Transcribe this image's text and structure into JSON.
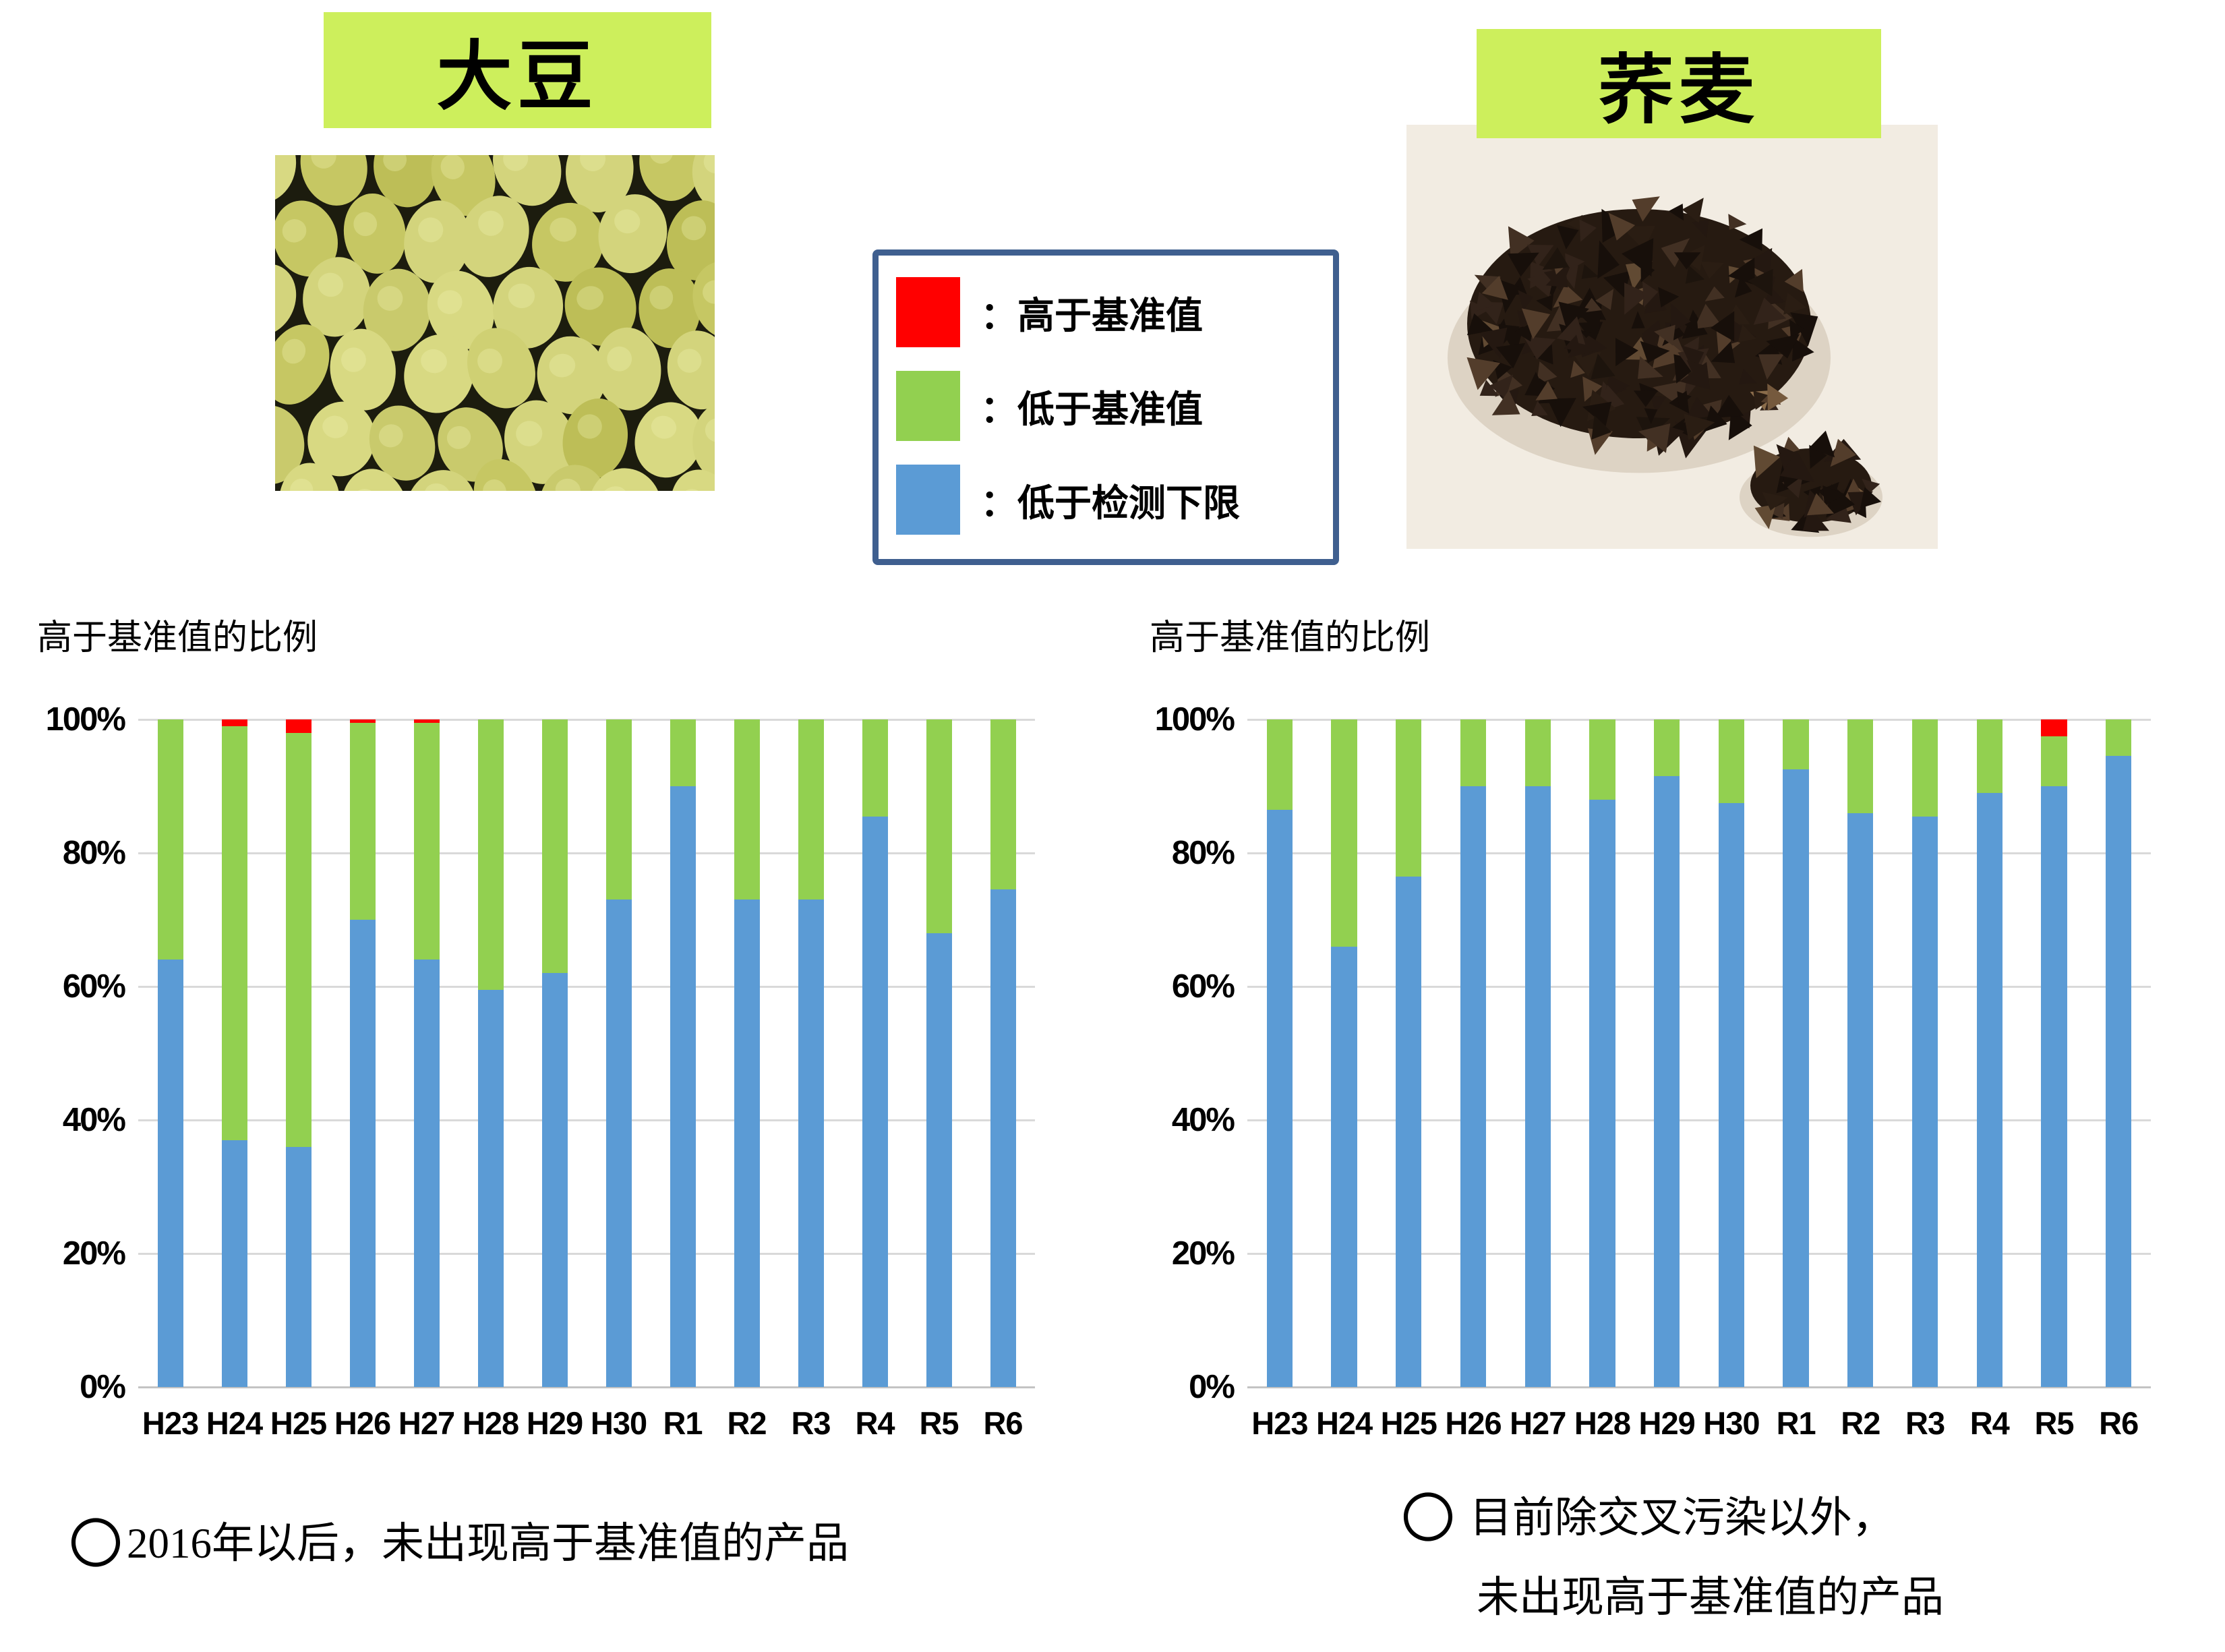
{
  "page": {
    "background": "#ffffff"
  },
  "headers": {
    "box_bg": "#cdef5c",
    "soybean_label": "大豆",
    "buckwheat_label": "荞麦"
  },
  "legend": {
    "border_color": "#3f5f8f",
    "items": [
      {
        "name": "above-standard",
        "color": "#ff0000",
        "label": "：高于基准值"
      },
      {
        "name": "below-standard",
        "color": "#92d050",
        "label": "：低于基准值"
      },
      {
        "name": "below-detection-limit",
        "color": "#5b9bd5",
        "label": "：低于检测下限"
      }
    ]
  },
  "chart_data": [
    {
      "type": "bar",
      "stacked": true,
      "title": "高于基准值的比例",
      "subject": "大豆",
      "categories": [
        "H23",
        "H24",
        "H25",
        "H26",
        "H27",
        "H28",
        "H29",
        "H30",
        "R1",
        "R2",
        "R3",
        "R4",
        "R5",
        "R6"
      ],
      "series": [
        {
          "name": "低于检测下限",
          "color": "#5b9bd5",
          "values": [
            64,
            37,
            36,
            70,
            64,
            59.5,
            62,
            73,
            90,
            73,
            73,
            85.5,
            68,
            74.5
          ]
        },
        {
          "name": "低于基准值",
          "color": "#92d050",
          "values": [
            36,
            62,
            62,
            29.5,
            35.5,
            40.5,
            38,
            27,
            10,
            27,
            27,
            14.5,
            32,
            25.5
          ]
        },
        {
          "name": "高于基准值",
          "color": "#ff0000",
          "values": [
            0,
            1,
            2,
            0.5,
            0.5,
            0,
            0,
            0,
            0,
            0,
            0,
            0,
            0,
            0
          ]
        }
      ],
      "ylim": [
        0,
        100
      ],
      "y_ticks": [
        "100%",
        "80%",
        "60%",
        "40%",
        "20%",
        "0%"
      ],
      "grid": true,
      "legend_position": "shared floating box at top center"
    },
    {
      "type": "bar",
      "stacked": true,
      "title": "高于基准值的比例",
      "subject": "荞麦",
      "categories": [
        "H23",
        "H24",
        "H25",
        "H26",
        "H27",
        "H28",
        "H29",
        "H30",
        "R1",
        "R2",
        "R3",
        "R4",
        "R5",
        "R6"
      ],
      "series": [
        {
          "name": "低于检测下限",
          "color": "#5b9bd5",
          "values": [
            86.5,
            66,
            76.5,
            90,
            90,
            88,
            91.5,
            87.5,
            92.5,
            86,
            85.5,
            89,
            90,
            94.5
          ]
        },
        {
          "name": "低于基准值",
          "color": "#92d050",
          "values": [
            13.5,
            34,
            23.5,
            10,
            10,
            12,
            8.5,
            12.5,
            7.5,
            14,
            14.5,
            11,
            7.5,
            5.5
          ]
        },
        {
          "name": "高于基准值",
          "color": "#ff0000",
          "values": [
            0,
            0,
            0,
            0,
            0,
            0,
            0,
            0,
            0,
            0,
            0,
            0,
            2.5,
            0
          ]
        }
      ],
      "ylim": [
        0,
        100
      ],
      "y_ticks": [
        "100%",
        "80%",
        "60%",
        "40%",
        "20%",
        "0%"
      ],
      "grid": true,
      "legend_position": "shared floating box at top center"
    }
  ],
  "footnotes": {
    "left_bullet": "〇",
    "left_text": "2016年以后，未出现高于基准值的产品",
    "right_bullet": "〇",
    "right_line1": "目前除交叉污染以外，",
    "right_line2": "未出现高于基准值的产品"
  }
}
